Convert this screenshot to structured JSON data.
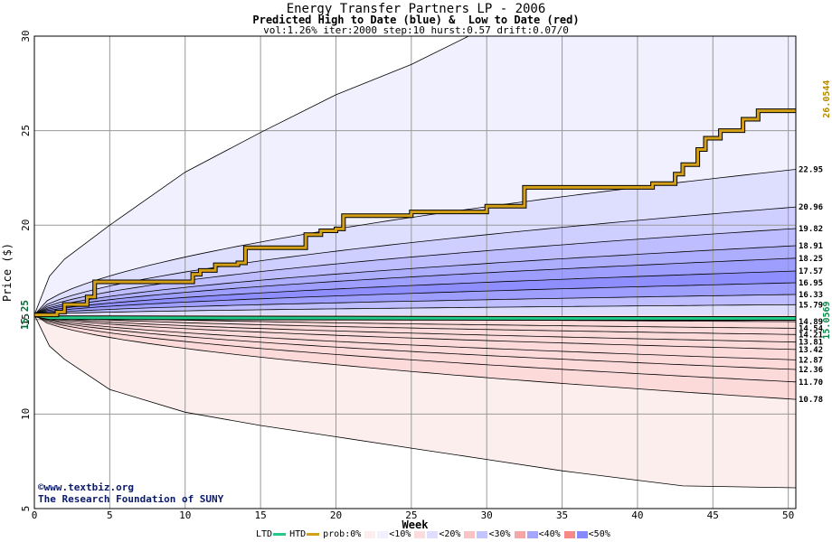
{
  "title": "Energy Transfer Partners LP - 2006",
  "subtitle": "Predicted High to Date (blue) &  Low to Date (red)",
  "params": "vol:1.26% iter:2000 step:10 hurst:0.57 drift:0.07/0",
  "credits": [
    "©www.textbiz.org",
    "The Research Foundation of SUNY"
  ],
  "legend": {
    "ltd": "LTD",
    "htd": "HTD",
    "prob": "prob:0%",
    "bands": [
      "<10%",
      "<20%",
      "<30%",
      "<40%",
      "<50%"
    ],
    "ltd_color": "#22cc88",
    "htd_color": "#d4a017"
  },
  "colors": {
    "grid": "#999999",
    "blue_band_base": "#5a5aff",
    "red_band_base": "#ff5a5a"
  },
  "chart_data": {
    "type": "area",
    "title": "Energy Transfer Partners LP - 2006",
    "xlabel": "Week",
    "ylabel": "Price ($)",
    "xlim": [
      0,
      50.5
    ],
    "ylim": [
      5,
      30
    ],
    "x_ticks": [
      0,
      5,
      10,
      15,
      20,
      25,
      30,
      35,
      40,
      45,
      50
    ],
    "y_ticks": [
      5,
      10,
      15,
      20,
      25,
      30
    ],
    "grid": true,
    "start_price": 15.25,
    "start_label": "15.25",
    "high_to_date_label": "26.0544",
    "low_to_date_label": "15.0569",
    "blue_quantile_curves": [
      {
        "end_label": "22.95",
        "end": 22.95,
        "max_envelope": false
      },
      {
        "end_label": "20.96",
        "end": 20.96
      },
      {
        "end_label": "19.82",
        "end": 19.82
      },
      {
        "end_label": "18.91",
        "end": 18.91
      },
      {
        "end_label": "18.25",
        "end": 18.25
      },
      {
        "end_label": "17.57",
        "end": 17.57
      },
      {
        "end_label": "16.95",
        "end": 16.95
      },
      {
        "end_label": "16.33",
        "end": 16.33
      },
      {
        "end_label": "15.79",
        "end": 15.79
      }
    ],
    "red_quantile_curves": [
      {
        "end_label": "14.89",
        "end": 14.89
      },
      {
        "end_label": "14.54",
        "end": 14.54
      },
      {
        "end_label": "14.21",
        "end": 14.21
      },
      {
        "end_label": "13.81",
        "end": 13.81
      },
      {
        "end_label": "13.42",
        "end": 13.42
      },
      {
        "end_label": "12.87",
        "end": 12.87
      },
      {
        "end_label": "12.36",
        "end": 12.36
      },
      {
        "end_label": "11.70",
        "end": 11.7
      },
      {
        "end_label": "10.78",
        "end": 10.78
      }
    ],
    "max_envelope": {
      "x": [
        0,
        1,
        2,
        5,
        10,
        15,
        20,
        25,
        28.8
      ],
      "y": [
        15.25,
        17.3,
        18.2,
        20.0,
        22.8,
        24.9,
        26.9,
        28.5,
        30.0
      ]
    },
    "min_envelope": {
      "x": [
        0,
        1,
        2,
        5,
        10,
        15,
        20,
        25,
        30,
        35,
        40,
        43,
        50.5
      ],
      "y": [
        15.25,
        13.6,
        12.9,
        11.3,
        10.1,
        9.4,
        8.8,
        8.2,
        7.6,
        7.0,
        6.5,
        6.2,
        6.1
      ]
    },
    "high_to_date_path": {
      "x": [
        0,
        1.5,
        2,
        3.5,
        4,
        10,
        10.5,
        11,
        12,
        13.5,
        14,
        17.5,
        18,
        19,
        20,
        20.5,
        21,
        24,
        25,
        29,
        30,
        32,
        32.5,
        40,
        41,
        42.5,
        43,
        44,
        44.5,
        45.5,
        47,
        48,
        50.5
      ],
      "y": [
        15.25,
        15.4,
        15.8,
        16.2,
        17.0,
        17.0,
        17.4,
        17.6,
        17.9,
        18.0,
        18.8,
        18.8,
        19.5,
        19.7,
        19.8,
        20.5,
        20.5,
        20.5,
        20.7,
        20.7,
        21.0,
        21.0,
        22.0,
        22.0,
        22.2,
        22.7,
        23.2,
        24.0,
        24.6,
        25.0,
        25.6,
        26.05,
        26.05
      ]
    },
    "low_to_date_path": {
      "x": [
        0,
        1,
        35,
        50.5
      ],
      "y": [
        15.25,
        15.1,
        15.06,
        15.06
      ]
    }
  }
}
